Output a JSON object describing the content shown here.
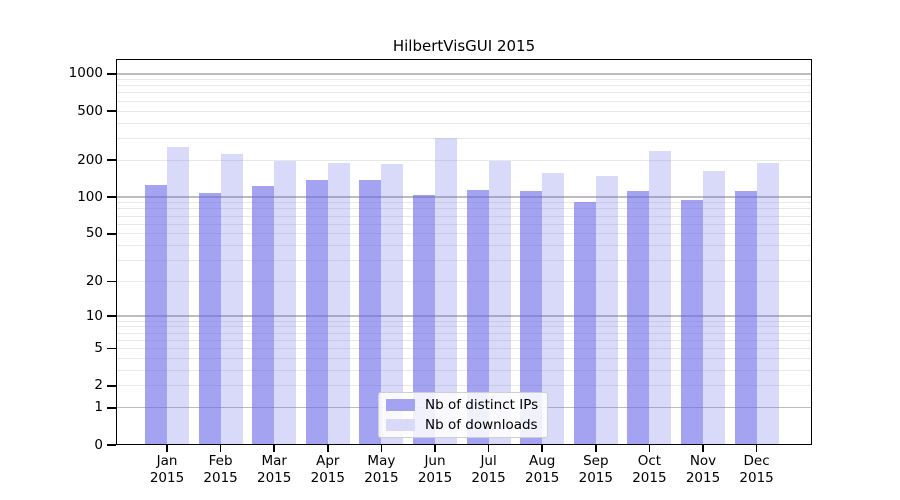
{
  "figure": {
    "background_color": "#ffffff",
    "text_color": "#000000"
  },
  "chart_data": {
    "type": "bar",
    "title": "HilbertVisGUI 2015",
    "categories": [
      "Jan",
      "Feb",
      "Mar",
      "Apr",
      "May",
      "Jun",
      "Jul",
      "Aug",
      "Sep",
      "Oct",
      "Nov",
      "Dec"
    ],
    "category_year": "2015",
    "series": [
      {
        "name": "Nb of distinct IPs",
        "color": "rgba(102,102,232,0.6)",
        "legend_swatch_hex": "#a3a3f1",
        "values": [
          126,
          108,
          123,
          137,
          139,
          104,
          115,
          113,
          91,
          112,
          95,
          113
        ]
      },
      {
        "name": "Nb of downloads",
        "color": "rgba(102,102,232,0.25)",
        "legend_swatch_hex": "#d9d9f9",
        "values": [
          258,
          224,
          197,
          190,
          185,
          300,
          198,
          157,
          149,
          237,
          162,
          190
        ]
      }
    ],
    "y_axis": {
      "scale": "log1p",
      "tick_values": [
        0,
        1,
        2,
        5,
        10,
        20,
        50,
        100,
        200,
        500,
        1000
      ],
      "top_value": 1322
    },
    "grid": {
      "horizontal": true,
      "minor_color": "#e8e8e8",
      "major_color": "#bdbdbd",
      "major_at_powers_of_ten": true
    },
    "legend": {
      "position": "lower-center"
    }
  }
}
